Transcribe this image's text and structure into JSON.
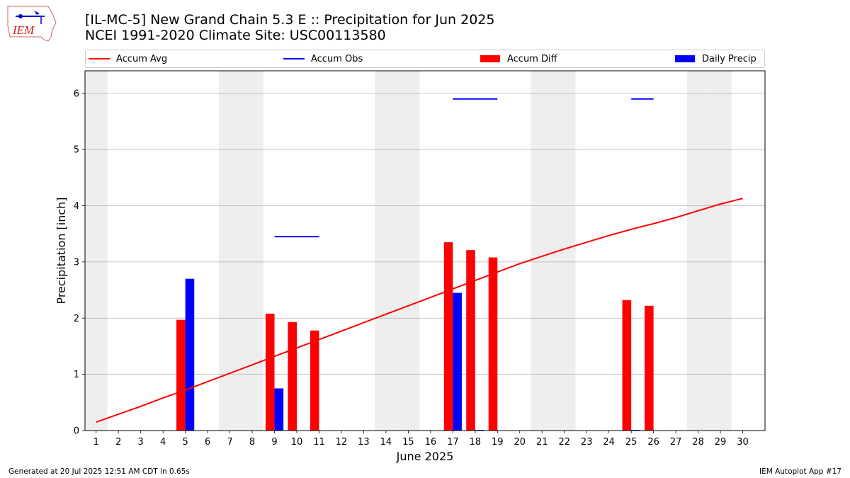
{
  "header": {
    "title_line1": "[IL-MC-5] New Grand Chain 5.3 E :: Precipitation for Jun 2025",
    "title_line2": "NCEI 1991-2020 Climate Site: USC00113580",
    "logo_text": "IEM"
  },
  "footer": {
    "generated": "Generated at 20 Jul 2025 12:51 AM CDT in 0.65s",
    "app": "IEM Autoplot App #17"
  },
  "colors": {
    "accum_avg": "#ff0000",
    "accum_obs": "#0000ff",
    "accum_diff": "#ff0000",
    "daily_precip": "#0000ff",
    "weekend_band": "#eeeeee",
    "grid": "#b0b0b0"
  },
  "chart_data": {
    "type": "bar",
    "xlabel": "June 2025",
    "ylabel": "Precipitation [inch]",
    "xlim": [
      0.5,
      31
    ],
    "ylim": [
      0,
      6.4
    ],
    "yticks": [
      0,
      1,
      2,
      3,
      4,
      5,
      6
    ],
    "x": [
      1,
      2,
      3,
      4,
      5,
      6,
      7,
      8,
      9,
      10,
      11,
      12,
      13,
      14,
      15,
      16,
      17,
      18,
      19,
      20,
      21,
      22,
      23,
      24,
      25,
      26,
      27,
      28,
      29,
      30
    ],
    "grid": "horizontal",
    "legend_placement": "top",
    "legend": [
      "Accum Avg",
      "Accum Obs",
      "Accum Diff",
      "Daily Precip"
    ],
    "weekend_days": [
      1,
      7,
      8,
      14,
      15,
      21,
      22,
      28,
      29
    ],
    "accum_avg": [
      0.15,
      0.29,
      0.43,
      0.58,
      0.72,
      0.87,
      1.02,
      1.17,
      1.32,
      1.47,
      1.62,
      1.77,
      1.92,
      2.07,
      2.22,
      2.37,
      2.52,
      2.67,
      2.82,
      2.97,
      3.1,
      3.23,
      3.35,
      3.47,
      3.58,
      3.68,
      3.79,
      3.91,
      4.03,
      4.13
    ],
    "accum_obs_segments": [
      {
        "x_start": 9,
        "x_end": 11,
        "value": 3.45
      },
      {
        "x_start": 17,
        "x_end": 19,
        "value": 5.9
      },
      {
        "x_start": 25,
        "x_end": 26,
        "value": 5.9
      }
    ],
    "accum_diff": [
      {
        "day": 5,
        "value": 1.97
      },
      {
        "day": 9,
        "value": 2.08
      },
      {
        "day": 10,
        "value": 1.93
      },
      {
        "day": 11,
        "value": 1.78
      },
      {
        "day": 17,
        "value": 3.35
      },
      {
        "day": 18,
        "value": 3.21
      },
      {
        "day": 19,
        "value": 3.08
      },
      {
        "day": 25,
        "value": 2.32
      },
      {
        "day": 26,
        "value": 2.22
      }
    ],
    "daily_precip": [
      {
        "day": 5,
        "value": 2.7
      },
      {
        "day": 9,
        "value": 0.75
      },
      {
        "day": 17,
        "value": 2.45
      },
      {
        "day": 18,
        "value": 0.01
      },
      {
        "day": 25,
        "value": 0.01
      }
    ]
  }
}
